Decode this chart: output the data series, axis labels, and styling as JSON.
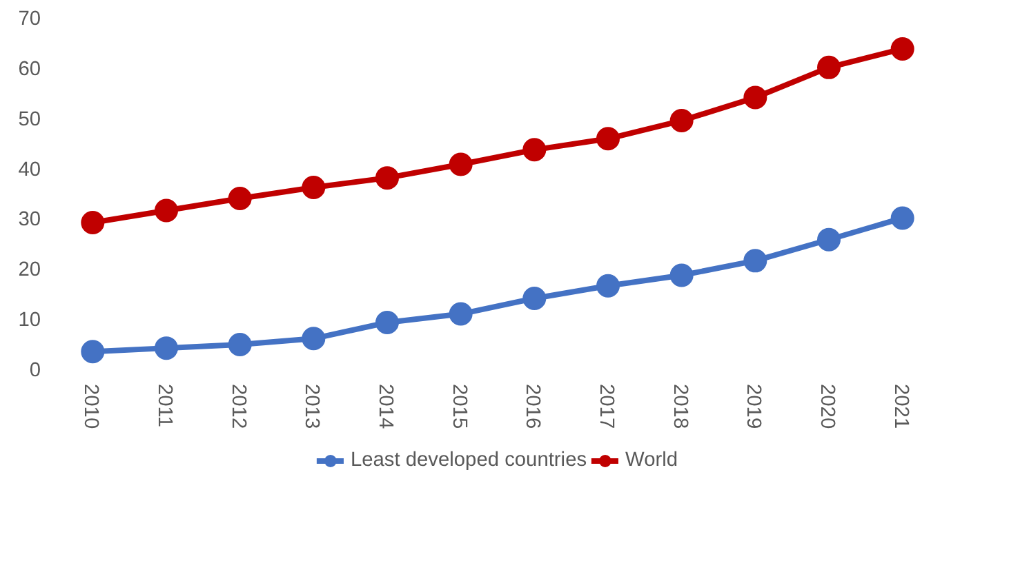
{
  "chart_data": {
    "type": "line",
    "categories": [
      "2010",
      "2011",
      "2012",
      "2013",
      "2014",
      "2015",
      "2016",
      "2017",
      "2018",
      "2019",
      "2020",
      "2021"
    ],
    "series": [
      {
        "name": "Least developed countries",
        "color": "#4472c4",
        "values": [
          3.4,
          4.1,
          4.8,
          6,
          9.2,
          10.9,
          14,
          16.5,
          18.6,
          21.5,
          25.7,
          30
        ]
      },
      {
        "name": "World",
        "color": "#c00000",
        "values": [
          29.1,
          31.5,
          33.9,
          36.1,
          38,
          40.7,
          43.6,
          45.8,
          49.4,
          54,
          60,
          63.7
        ]
      }
    ],
    "ylim": [
      0,
      70
    ],
    "yticks": [
      0,
      10,
      20,
      30,
      40,
      50,
      60,
      70
    ],
    "grid": false,
    "legend": "bottom",
    "marker": "circle",
    "line_style": "solid"
  }
}
